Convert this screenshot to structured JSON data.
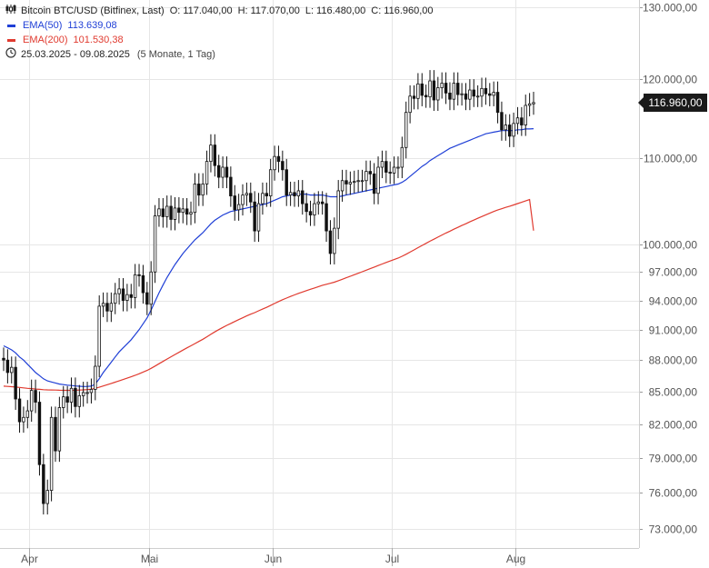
{
  "header": {
    "symbol": "Bitcoin BTC/USD (Bitfinex, Last)",
    "open_label": "O:",
    "open": "117.040,00",
    "high_label": "H:",
    "high": "117.070,00",
    "low_label": "L:",
    "low": "116.480,00",
    "close_label": "C:",
    "close": "116.960,00"
  },
  "legend": [
    {
      "name": "EMA(50)",
      "value": "113.639,08",
      "color": "#1f3fd6"
    },
    {
      "name": "EMA(200)",
      "value": "101.530,38",
      "color": "#e03a2f"
    }
  ],
  "range": {
    "dates": "25.03.2025 - 09.08.2025",
    "detail": "(5 Monate, 1 Tag)"
  },
  "last_price_tag": "116.960,00",
  "chart_data": {
    "type": "candlestick",
    "y_scale": "log",
    "ylim": [
      71500,
      131000
    ],
    "x_tick_labels": [
      "Apr",
      "Mai",
      "Jun",
      "Jul",
      "Aug"
    ],
    "y_tick_values": [
      73000,
      76000,
      79000,
      82000,
      85000,
      88000,
      91000,
      94000,
      97000,
      100000,
      110000,
      120000,
      130000
    ],
    "y_tick_labels": [
      "73.000,00",
      "76.000,00",
      "79.000,00",
      "82.000,00",
      "85.000,00",
      "88.000,00",
      "91.000,00",
      "94.000,00",
      "97.000,00",
      "100.000,00",
      "110.000,00",
      "120.000,00",
      "130.000,00"
    ],
    "closes": [
      88000,
      86800,
      87300,
      84300,
      82200,
      82600,
      83200,
      85100,
      84000,
      78400,
      75100,
      76200,
      82600,
      79600,
      83500,
      84500,
      84000,
      85300,
      83600,
      84600,
      84900,
      84900,
      85200,
      87400,
      93400,
      93700,
      92900,
      93700,
      94700,
      95200,
      94000,
      94600,
      94300,
      96700,
      96600,
      94800,
      93600,
      97000,
      103200,
      104000,
      103100,
      104300,
      102800,
      104100,
      103600,
      104000,
      103400,
      103600,
      106900,
      105600,
      106900,
      109600,
      111600,
      109100,
      107700,
      108900,
      107700,
      105500,
      103900,
      104500,
      105600,
      105800,
      104800,
      101500,
      104600,
      105800,
      105500,
      108600,
      110200,
      109600,
      108600,
      105600,
      105900,
      105500,
      106100,
      104600,
      103700,
      103300,
      104600,
      104800,
      104600,
      101500,
      99000,
      101800,
      106100,
      107300,
      106900,
      107100,
      107200,
      107300,
      107300,
      108400,
      108100,
      105800,
      108900,
      109600,
      108300,
      108200,
      108900,
      108900,
      111300,
      115700,
      117800,
      117500,
      119400,
      117900,
      117700,
      119800,
      117300,
      118900,
      119500,
      118200,
      117400,
      119500,
      118000,
      118100,
      117400,
      118600,
      117800,
      117800,
      118800,
      118100,
      117900,
      118300,
      115700,
      113500,
      114100,
      112700,
      114300,
      115000,
      114100,
      116600,
      116800,
      116960
    ],
    "ema50_closes": [
      89400,
      89200,
      89000,
      88700,
      88300,
      88000,
      87600,
      87200,
      86800,
      86500,
      86200,
      86000,
      85900,
      85800,
      85700,
      85650,
      85600,
      85560,
      85520,
      85490,
      85470,
      85480,
      85500,
      85700,
      86200,
      86800,
      87300,
      87800,
      88300,
      88800,
      89200,
      89600,
      90000,
      90500,
      91000,
      91600,
      92200,
      93000,
      93900,
      94800,
      95600,
      96400,
      97100,
      97800,
      98400,
      99000,
      99500,
      100000,
      100500,
      100900,
      101300,
      101800,
      102300,
      102700,
      103000,
      103300,
      103500,
      103700,
      103800,
      103900,
      104000,
      104100,
      104200,
      104300,
      104400,
      104500,
      104600,
      104800,
      105000,
      105200,
      105400,
      105500,
      105600,
      105700,
      105700,
      105700,
      105700,
      105600,
      105600,
      105600,
      105600,
      105500,
      105400,
      105400,
      105400,
      105500,
      105600,
      105700,
      105800,
      105900,
      106000,
      106100,
      106200,
      106300,
      106400,
      106500,
      106600,
      106700,
      106800,
      106900,
      107100,
      107400,
      107800,
      108200,
      108600,
      109000,
      109300,
      109700,
      110000,
      110300,
      110600,
      110900,
      111200,
      111400,
      111600,
      111800,
      112000,
      112200,
      112400,
      112600,
      112800,
      113000,
      113100,
      113200,
      113300,
      113400,
      113400,
      113400,
      113400,
      113500,
      113500,
      113600,
      113600,
      113639
    ],
    "ema200_closes": [
      85500,
      85480,
      85450,
      85420,
      85380,
      85340,
      85300,
      85270,
      85230,
      85200,
      85170,
      85150,
      85140,
      85130,
      85120,
      85110,
      85110,
      85110,
      85120,
      85130,
      85150,
      85180,
      85220,
      85300,
      85400,
      85520,
      85640,
      85760,
      85880,
      86000,
      86130,
      86260,
      86390,
      86530,
      86680,
      86840,
      87000,
      87200,
      87420,
      87650,
      87870,
      88100,
      88320,
      88540,
      88760,
      88980,
      89190,
      89400,
      89620,
      89830,
      90050,
      90290,
      90540,
      90780,
      91010,
      91230,
      91440,
      91640,
      91830,
      92020,
      92210,
      92400,
      92580,
      92740,
      92920,
      93100,
      93280,
      93480,
      93680,
      93880,
      94070,
      94240,
      94410,
      94570,
      94730,
      94880,
      95020,
      95160,
      95300,
      95440,
      95580,
      95690,
      95790,
      95910,
      96060,
      96220,
      96380,
      96540,
      96700,
      96860,
      97020,
      97190,
      97360,
      97520,
      97690,
      97860,
      98020,
      98180,
      98340,
      98500,
      98690,
      98910,
      99150,
      99390,
      99640,
      99880,
      100110,
      100350,
      100580,
      100810,
      101040,
      101260,
      101470,
      101690,
      101900,
      102110,
      102310,
      102520,
      102720,
      102920,
      103120,
      103320,
      103510,
      103700,
      103870,
      104020,
      104170,
      104310,
      104460,
      104610,
      104760,
      104920,
      105080,
      101530.38
    ]
  }
}
